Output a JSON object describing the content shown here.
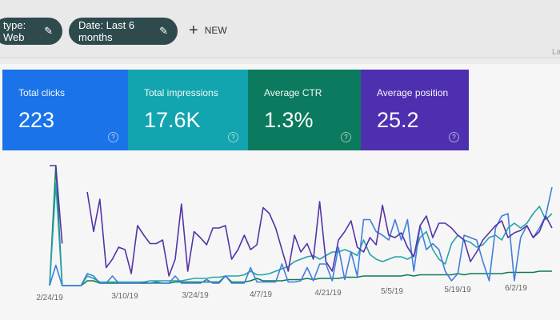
{
  "filters": [
    {
      "label": "type: Web",
      "icon": "pencil-icon"
    },
    {
      "label": "Date: Last 6 months",
      "icon": "pencil-icon"
    }
  ],
  "new_button": {
    "label": "NEW",
    "icon": "plus-icon"
  },
  "edge_text": "La",
  "metrics": [
    {
      "label": "Total clicks",
      "value": "223",
      "color": "#1a73e8"
    },
    {
      "label": "Total impressions",
      "value": "17.6K",
      "color": "#12a4af"
    },
    {
      "label": "Average CTR",
      "value": "1.3%",
      "color": "#0b7a5e"
    },
    {
      "label": "Average position",
      "value": "25.2",
      "color": "#4e2fb0"
    }
  ],
  "chart_data": {
    "type": "line",
    "x_tick_labels": [
      "2/24/19",
      "3/10/19",
      "3/24/19",
      "4/7/19",
      "4/21/19",
      "5/5/19",
      "5/19/19",
      "6/2/19"
    ],
    "grid": false,
    "series": [
      {
        "name": "Average position",
        "color": "#5533a8",
        "values": [
          100,
          100,
          35,
          null,
          null,
          null,
          78,
          45,
          72,
          15,
          22,
          32,
          30,
          10,
          50,
          42,
          35,
          35,
          38,
          8,
          22,
          68,
          12,
          45,
          40,
          34,
          48,
          48,
          50,
          22,
          30,
          42,
          30,
          34,
          65,
          60,
          48,
          30,
          12,
          42,
          28,
          35,
          22,
          70,
          20,
          12,
          38,
          45,
          54,
          32,
          28,
          40,
          34,
          67,
          42,
          40,
          44,
          32,
          24,
          50,
          58,
          40,
          52,
          52,
          48,
          42,
          38,
          20,
          28,
          38,
          44,
          50,
          54,
          40,
          44,
          46,
          50,
          40,
          45,
          58,
          48
        ]
      },
      {
        "name": "Total clicks",
        "color": "#3f7fdc",
        "values": [
          0,
          17,
          0,
          0,
          0,
          0,
          10,
          8,
          2,
          2,
          8,
          2,
          2,
          2,
          2,
          3,
          2,
          2,
          2,
          2,
          8,
          2,
          2,
          2,
          2,
          5,
          2,
          2,
          8,
          2,
          2,
          2,
          15,
          3,
          3,
          3,
          3,
          18,
          3,
          3,
          4,
          15,
          4,
          18,
          18,
          4,
          32,
          5,
          28,
          8,
          55,
          55,
          45,
          42,
          38,
          55,
          38,
          55,
          12,
          50,
          30,
          35,
          30,
          12,
          4,
          10,
          42,
          40,
          38,
          20,
          4,
          48,
          58,
          60,
          4,
          40,
          50,
          40,
          48,
          58,
          82
        ]
      },
      {
        "name": "Total impressions",
        "color": "#27a3a8",
        "values": [
          0,
          85,
          0,
          0,
          0,
          0,
          8,
          6,
          3,
          3,
          3,
          3,
          3,
          3,
          3,
          3,
          4,
          4,
          4,
          4,
          4,
          4,
          5,
          6,
          6,
          6,
          7,
          7,
          8,
          8,
          8,
          9,
          12,
          9,
          9,
          10,
          12,
          14,
          16,
          20,
          22,
          24,
          25,
          22,
          25,
          28,
          28,
          30,
          28,
          25,
          38,
          26,
          22,
          20,
          22,
          24,
          24,
          22,
          25,
          40,
          45,
          30,
          22,
          18,
          35,
          42,
          38,
          36,
          32,
          34,
          40,
          42,
          38,
          48,
          52,
          48,
          52,
          60,
          66,
          55,
          60
        ]
      },
      {
        "name": "Average CTR",
        "color": "#0f7a55",
        "values": [
          0,
          100,
          0,
          0,
          0,
          0,
          4,
          4,
          2,
          2,
          2,
          2,
          2,
          2,
          2,
          2,
          2,
          3,
          2,
          2,
          3,
          3,
          3,
          3,
          3,
          3,
          3,
          3,
          8,
          3,
          3,
          3,
          4,
          6,
          4,
          4,
          4,
          4,
          5,
          5,
          5,
          6,
          5,
          6,
          6,
          6,
          6,
          7,
          7,
          7,
          8,
          8,
          8,
          8,
          8,
          8,
          8,
          9,
          8,
          9,
          9,
          9,
          9,
          9,
          9,
          10,
          9,
          10,
          10,
          10,
          10,
          10,
          10,
          11,
          11,
          11,
          11,
          11,
          12,
          12,
          12
        ]
      }
    ]
  }
}
